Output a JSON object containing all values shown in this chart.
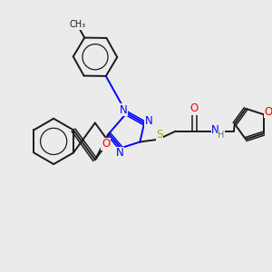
{
  "bg": "#ebebeb",
  "bc": "#1a1a1a",
  "nc": "#0000ff",
  "oc": "#ff0000",
  "sc": "#aaaa00",
  "hc": "#6e6e6e",
  "lw": 1.4,
  "lw_dbl": 1.1,
  "fs": 8.5,
  "fs_sm": 7.0,
  "figsize": [
    3.0,
    3.0
  ],
  "dpi": 100,
  "xlim": [
    0,
    10
  ],
  "ylim": [
    0,
    10
  ]
}
